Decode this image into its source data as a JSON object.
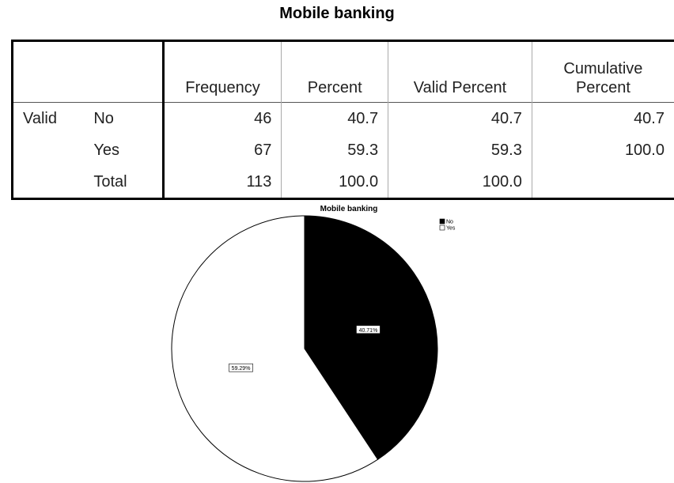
{
  "table": {
    "title": "Mobile banking",
    "columns": [
      "Frequency",
      "Percent",
      "Valid Percent",
      "Cumulative Percent"
    ],
    "group": "Valid",
    "rows": [
      {
        "label": "No",
        "cells": [
          "46",
          "40.7",
          "40.7",
          "40.7"
        ]
      },
      {
        "label": "Yes",
        "cells": [
          "67",
          "59.3",
          "59.3",
          "100.0"
        ]
      },
      {
        "label": "Total",
        "cells": [
          "113",
          "100.0",
          "100.0"
        ]
      }
    ]
  },
  "chart_data": {
    "type": "pie",
    "title": "Mobile banking",
    "categories": [
      "No",
      "Yes"
    ],
    "values": [
      40.71,
      59.29
    ],
    "value_labels": [
      "40.71%",
      "59.29%"
    ],
    "colors": [
      "#000000",
      "#ffffff"
    ],
    "legend": "top-right"
  }
}
